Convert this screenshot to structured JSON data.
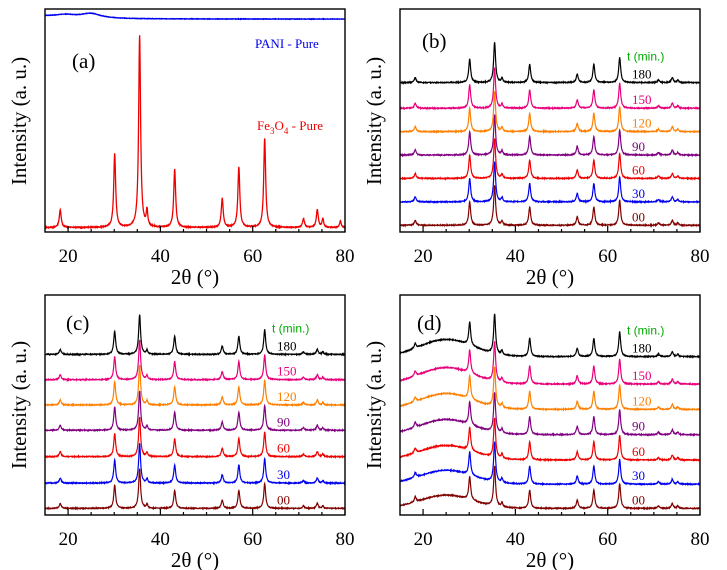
{
  "chart_data": [
    {
      "type": "line",
      "panel": "(a)",
      "xlabel": "2θ (°)",
      "ylabel": "Intensity (a. u.)",
      "xlim": [
        15,
        80
      ],
      "xticks": [
        20,
        40,
        60,
        80
      ],
      "series": [
        {
          "name": "PANI - Pure",
          "color": "#0000ee",
          "baseline": 0.955,
          "noise": 0.002,
          "peaks": [
            [
              19.5,
              0.012,
              3.0
            ],
            [
              25.0,
              0.02,
              2.5
            ]
          ],
          "decay": 0.012
        },
        {
          "name": "Fe3O4 - Pure",
          "label_parts": [
            "Fe",
            "3",
            "O",
            "4",
            " - Pure"
          ],
          "color": "#ee0000",
          "baseline": 0.02,
          "noise": 0.004,
          "peaks": [
            [
              18.3,
              0.08,
              0.25
            ],
            [
              30.1,
              0.33,
              0.25
            ],
            [
              35.5,
              0.86,
              0.25
            ],
            [
              37.1,
              0.07,
              0.2
            ],
            [
              43.1,
              0.26,
              0.25
            ],
            [
              53.4,
              0.13,
              0.25
            ],
            [
              57.0,
              0.27,
              0.25
            ],
            [
              62.6,
              0.4,
              0.25
            ],
            [
              71.0,
              0.04,
              0.25
            ],
            [
              74.0,
              0.08,
              0.25
            ],
            [
              75.2,
              0.04,
              0.2
            ],
            [
              79.0,
              0.03,
              0.2
            ]
          ]
        }
      ]
    },
    {
      "type": "line",
      "panel": "(b)",
      "xlabel": "2θ (°)",
      "ylabel": "Intensity (a. u.)",
      "xlim": [
        15,
        80
      ],
      "xticks": [
        20,
        40,
        60,
        80
      ],
      "legend_title": "t (min.)",
      "legend_color": "#00aa00",
      "hump": 0,
      "series": [
        {
          "name": "00",
          "color": "#800000",
          "offset": 0.0
        },
        {
          "name": "30",
          "color": "#0000ee",
          "offset": 0.105
        },
        {
          "name": "60",
          "color": "#ee0000",
          "offset": 0.21
        },
        {
          "name": "90",
          "color": "#800080",
          "offset": 0.315
        },
        {
          "name": "120",
          "color": "#ff8000",
          "offset": 0.42
        },
        {
          "name": "150",
          "color": "#e8007a",
          "offset": 0.525
        },
        {
          "name": "180",
          "color": "#000000",
          "offset": 0.64
        }
      ]
    },
    {
      "type": "line",
      "panel": "(c)",
      "xlabel": "2θ (°)",
      "ylabel": "Intensity (a. u.)",
      "xlim": [
        15,
        80
      ],
      "xticks": [
        20,
        40,
        60,
        80
      ],
      "legend_title": "t (min.)",
      "legend_color": "#00aa00",
      "hump": 0,
      "series": [
        {
          "name": "00",
          "color": "#800000",
          "offset": 0.0
        },
        {
          "name": "30",
          "color": "#0000ee",
          "offset": 0.115
        },
        {
          "name": "60",
          "color": "#ee0000",
          "offset": 0.235
        },
        {
          "name": "90",
          "color": "#800080",
          "offset": 0.355
        },
        {
          "name": "120",
          "color": "#ff8000",
          "offset": 0.47
        },
        {
          "name": "150",
          "color": "#e8007a",
          "offset": 0.585
        },
        {
          "name": "180",
          "color": "#000000",
          "offset": 0.7
        }
      ]
    },
    {
      "type": "line",
      "panel": "(d)",
      "xlabel": "2θ (°)",
      "ylabel": "Intensity (a. u.)",
      "xlim": [
        15,
        80
      ],
      "xticks": [
        20,
        40,
        60,
        80
      ],
      "legend_title": "t (min.)",
      "legend_color": "#00aa00",
      "hump": 0.06,
      "series": [
        {
          "name": "00",
          "color": "#800000",
          "offset": 0.0
        },
        {
          "name": "30",
          "color": "#0000ee",
          "offset": 0.11
        },
        {
          "name": "60",
          "color": "#ee0000",
          "offset": 0.22
        },
        {
          "name": "90",
          "color": "#800080",
          "offset": 0.335
        },
        {
          "name": "120",
          "color": "#ff8000",
          "offset": 0.45
        },
        {
          "name": "150",
          "color": "#e8007a",
          "offset": 0.565
        },
        {
          "name": "180",
          "color": "#000000",
          "offset": 0.69
        }
      ]
    }
  ],
  "sample_peaks": [
    [
      18.3,
      0.06,
      0.25
    ],
    [
      30.1,
      0.28,
      0.25
    ],
    [
      35.5,
      0.48,
      0.25
    ],
    [
      37.1,
      0.05,
      0.2
    ],
    [
      43.1,
      0.22,
      0.25
    ],
    [
      53.4,
      0.1,
      0.25
    ],
    [
      57.0,
      0.22,
      0.25
    ],
    [
      62.6,
      0.3,
      0.25
    ],
    [
      71.0,
      0.03,
      0.25
    ],
    [
      74.0,
      0.06,
      0.25
    ],
    [
      75.2,
      0.03,
      0.2
    ]
  ]
}
